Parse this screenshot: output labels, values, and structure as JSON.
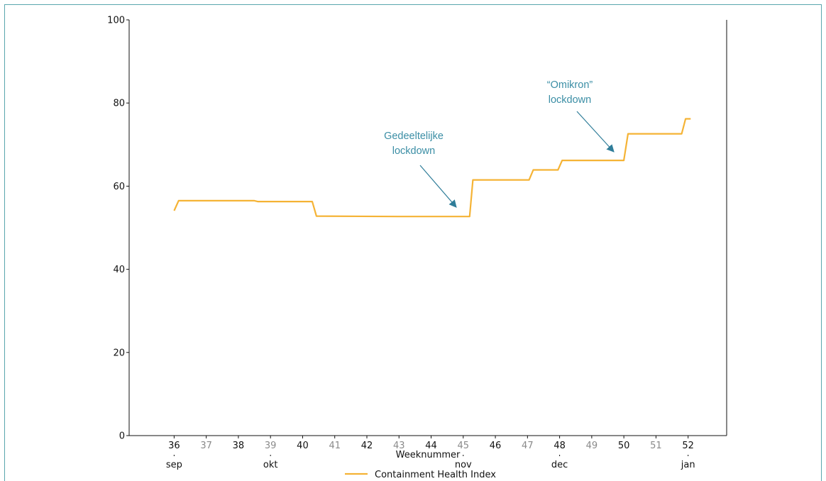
{
  "chart_data": {
    "type": "line",
    "xlabel": "Weeknummer",
    "ylabel": "",
    "title": "",
    "xlim": [
      34.6,
      53.2
    ],
    "ylim": [
      0,
      100
    ],
    "y_ticks": [
      0,
      20,
      40,
      60,
      80,
      100
    ],
    "x_ticks": [
      {
        "week": 36,
        "label": "36",
        "emphasis": "dark"
      },
      {
        "week": 37,
        "label": "37",
        "emphasis": "grey"
      },
      {
        "week": 38,
        "label": "38",
        "emphasis": "dark"
      },
      {
        "week": 39,
        "label": "39",
        "emphasis": "grey"
      },
      {
        "week": 40,
        "label": "40",
        "emphasis": "dark"
      },
      {
        "week": 41,
        "label": "41",
        "emphasis": "grey"
      },
      {
        "week": 42,
        "label": "42",
        "emphasis": "dark"
      },
      {
        "week": 43,
        "label": "43",
        "emphasis": "grey"
      },
      {
        "week": 44,
        "label": "44",
        "emphasis": "dark"
      },
      {
        "week": 45,
        "label": "45",
        "emphasis": "grey"
      },
      {
        "week": 46,
        "label": "46",
        "emphasis": "dark"
      },
      {
        "week": 47,
        "label": "47",
        "emphasis": "grey"
      },
      {
        "week": 48,
        "label": "48",
        "emphasis": "dark"
      },
      {
        "week": 49,
        "label": "49",
        "emphasis": "grey"
      },
      {
        "week": 50,
        "label": "50",
        "emphasis": "dark"
      },
      {
        "week": 51,
        "label": "51",
        "emphasis": "grey"
      },
      {
        "week": 52,
        "label": "52",
        "emphasis": "dark"
      }
    ],
    "months": [
      {
        "week": 36,
        "label": "sep"
      },
      {
        "week": 39,
        "label": "okt"
      },
      {
        "week": 45,
        "label": "nov"
      },
      {
        "week": 48,
        "label": "dec"
      },
      {
        "week": 52,
        "label": "jan"
      }
    ],
    "legend": {
      "position": "bottom-center"
    },
    "grid": false,
    "series": [
      {
        "name": "Containment Health Index",
        "color": "#f5b335",
        "points": [
          [
            36.0,
            54.1
          ],
          [
            36.14,
            56.5
          ],
          [
            38.5,
            56.5
          ],
          [
            38.6,
            56.3
          ],
          [
            40.3,
            56.3
          ],
          [
            40.43,
            52.8
          ],
          [
            43.0,
            52.7
          ],
          [
            45.2,
            52.7
          ],
          [
            45.3,
            61.5
          ],
          [
            47.05,
            61.5
          ],
          [
            47.18,
            63.9
          ],
          [
            47.95,
            63.9
          ],
          [
            48.08,
            66.2
          ],
          [
            50.0,
            66.2
          ],
          [
            50.13,
            72.6
          ],
          [
            51.8,
            72.6
          ],
          [
            51.92,
            76.2
          ],
          [
            52.08,
            76.2
          ]
        ]
      }
    ],
    "annotations": [
      {
        "lines": [
          "Gedeeltelijke",
          "lockdown"
        ],
        "target_week": 45.0,
        "target_value": 55.0
      },
      {
        "lines": [
          "“Omikron”",
          "lockdown"
        ],
        "target_week": 49.8,
        "target_value": 68.0
      }
    ]
  }
}
